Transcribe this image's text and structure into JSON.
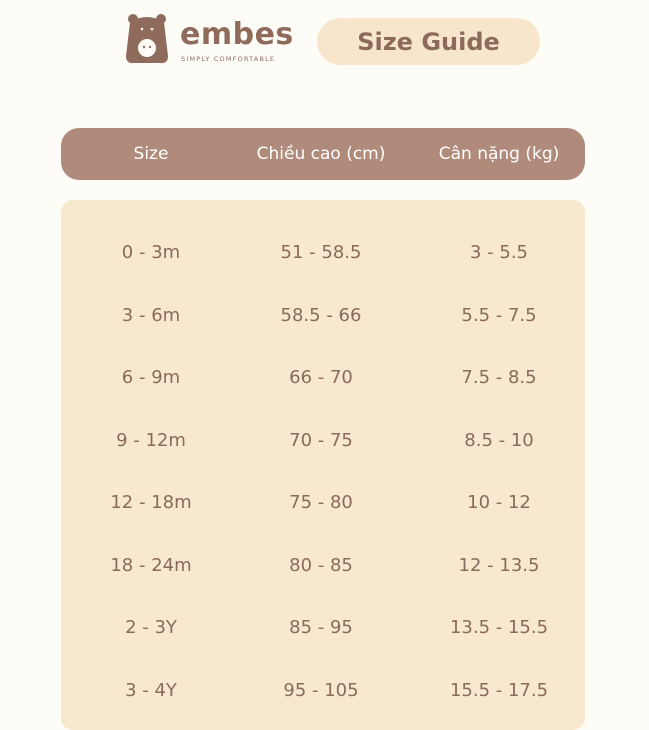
{
  "brand": {
    "name": "embes",
    "tagline": "SIMPLY COMFORTABLE"
  },
  "title": "Size Guide",
  "colors": {
    "header": "#b08b7b",
    "table_bg": "#f8e8cf",
    "text": "#8a6a5c",
    "page_bg": "#fefcf7"
  },
  "table": {
    "headers": [
      "Size",
      "Chiều cao (cm)",
      "Cân nặng (kg)"
    ],
    "rows": [
      [
        "0 - 3m",
        "51 - 58.5",
        "3 - 5.5"
      ],
      [
        "3 - 6m",
        "58.5 - 66",
        "5.5 - 7.5"
      ],
      [
        "6 - 9m",
        "66 - 70",
        "7.5 - 8.5"
      ],
      [
        "9 - 12m",
        "70 - 75",
        "8.5 - 10"
      ],
      [
        "12 - 18m",
        "75 - 80",
        "10 - 12"
      ],
      [
        "18 - 24m",
        "80 - 85",
        "12 - 13.5"
      ],
      [
        "2 - 3Y",
        "85 - 95",
        "13.5 - 15.5"
      ],
      [
        "3 - 4Y",
        "95 - 105",
        "15.5 - 17.5"
      ]
    ]
  }
}
